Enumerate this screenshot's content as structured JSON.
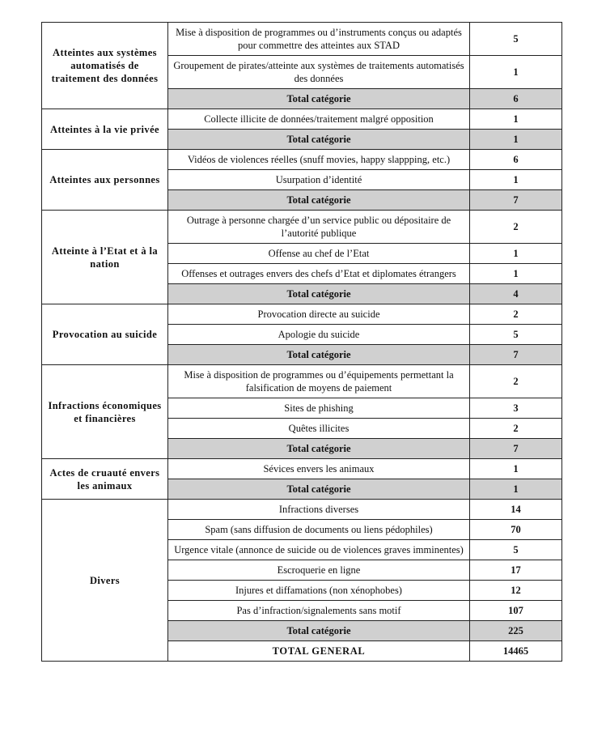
{
  "total_label": "Total catégorie",
  "grand_total": {
    "label": "TOTAL GENERAL",
    "value": "14465"
  },
  "groups": [
    {
      "category": "Atteintes aux systèmes automatisés de traitement des données",
      "rows": [
        {
          "label": "Mise à disposition de programmes ou d’instruments conçus ou adaptés pour commettre des atteintes aux STAD",
          "value": "5"
        },
        {
          "label": "Groupement de pirates/atteinte aux systèmes de traitements automatisés des données",
          "value": "1"
        }
      ],
      "total": "6"
    },
    {
      "category": "Atteintes à la vie privée",
      "rows": [
        {
          "label": "Collecte illicite de données/traitement malgré opposition",
          "value": "1"
        }
      ],
      "total": "1"
    },
    {
      "category": "Atteintes aux personnes",
      "rows": [
        {
          "label": "Vidéos de violences réelles (snuff movies, happy slappping, etc.)",
          "value": "6"
        },
        {
          "label": "Usurpation d’identité",
          "value": "1"
        }
      ],
      "total": "7"
    },
    {
      "category": "Atteinte à l’Etat et à la nation",
      "rows": [
        {
          "label": "Outrage à personne chargée d’un service public ou dépositaire de l’autorité publique",
          "value": "2"
        },
        {
          "label": "Offense au chef de l’Etat",
          "value": "1"
        },
        {
          "label": "Offenses et outrages envers des chefs d’Etat et diplomates étrangers",
          "value": "1"
        }
      ],
      "total": "4"
    },
    {
      "category": "Provocation au suicide",
      "rows": [
        {
          "label": "Provocation directe au suicide",
          "value": "2"
        },
        {
          "label": "Apologie du suicide",
          "value": "5"
        }
      ],
      "total": "7"
    },
    {
      "category": "Infractions économiques et financières",
      "rows": [
        {
          "label": "Mise à disposition de programmes ou d’équipements permettant la falsification de moyens de paiement",
          "value": "2"
        },
        {
          "label": "Sites de phishing",
          "value": "3"
        },
        {
          "label": "Quêtes illicites",
          "value": "2"
        }
      ],
      "total": "7"
    },
    {
      "category": "Actes de cruauté envers les animaux",
      "rows": [
        {
          "label": "Sévices envers les animaux",
          "value": "1"
        }
      ],
      "total": "1"
    },
    {
      "category": "Divers",
      "rows": [
        {
          "label": "Infractions diverses",
          "value": "14"
        },
        {
          "label": "Spam (sans diffusion de documents ou liens pédophiles)",
          "value": "70"
        },
        {
          "label": "Urgence vitale (annonce de suicide ou de violences graves imminentes)",
          "value": "5"
        },
        {
          "label": "Escroquerie en ligne",
          "value": "17"
        },
        {
          "label": "Injures et diffamations (non xénophobes)",
          "value": "12"
        },
        {
          "label": "Pas d’infraction/signalements sans motif",
          "value": "107"
        }
      ],
      "total": "225"
    }
  ]
}
